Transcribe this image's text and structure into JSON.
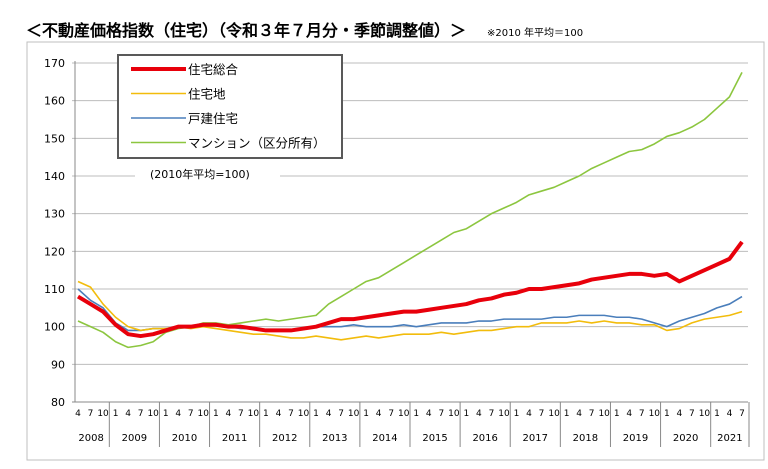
{
  "header": {
    "title": "＜不動産価格指数（住宅）（令和３年７月分・季節調整値）＞",
    "note": "※2010 年平均＝100"
  },
  "chart_data": {
    "type": "line",
    "title": "＜不動産価格指数（住宅）（令和３年７月分・季節調整値）＞",
    "annotation": "(2010年平均=100)",
    "xlabel": "",
    "ylabel": "",
    "ylim": [
      80,
      170
    ],
    "yticks": [
      80,
      90,
      100,
      110,
      120,
      130,
      140,
      150,
      160,
      170
    ],
    "grid": true,
    "legend_position": "top-left",
    "month_tick_labels": [
      "1",
      "4",
      "7",
      "10"
    ],
    "year_labels": [
      "2008",
      "2009",
      "2010",
      "2011",
      "2012",
      "2013",
      "2014",
      "2015",
      "2016",
      "2017",
      "2018",
      "2019",
      "2020",
      "2021"
    ],
    "x": [
      "2008-04",
      "2008-07",
      "2008-10",
      "2009-01",
      "2009-04",
      "2009-07",
      "2009-10",
      "2010-01",
      "2010-04",
      "2010-07",
      "2010-10",
      "2011-01",
      "2011-04",
      "2011-07",
      "2011-10",
      "2012-01",
      "2012-04",
      "2012-07",
      "2012-10",
      "2013-01",
      "2013-04",
      "2013-07",
      "2013-10",
      "2014-01",
      "2014-04",
      "2014-07",
      "2014-10",
      "2015-01",
      "2015-04",
      "2015-07",
      "2015-10",
      "2016-01",
      "2016-04",
      "2016-07",
      "2016-10",
      "2017-01",
      "2017-04",
      "2017-07",
      "2017-10",
      "2018-01",
      "2018-04",
      "2018-07",
      "2018-10",
      "2019-01",
      "2019-04",
      "2019-07",
      "2019-10",
      "2020-01",
      "2020-04",
      "2020-07",
      "2020-10",
      "2021-01",
      "2021-04",
      "2021-07"
    ],
    "series": [
      {
        "name": "住宅総合",
        "color": "#e8000b",
        "width": 4,
        "values": [
          108,
          106,
          104,
          100.5,
          98,
          97.5,
          98,
          99,
          100,
          100,
          100.5,
          100.5,
          100,
          100,
          99.5,
          99,
          99,
          99,
          99.5,
          100,
          101,
          102,
          102,
          102.5,
          103,
          103.5,
          104,
          104,
          104.5,
          105,
          105.5,
          106,
          107,
          107.5,
          108.5,
          109,
          110,
          110,
          110.5,
          111,
          111.5,
          112.5,
          113,
          113.5,
          114,
          114,
          113.5,
          114,
          112,
          113.5,
          115,
          116.5,
          118,
          122.5
        ]
      },
      {
        "name": "住宅地",
        "color": "#f2bc0c",
        "width": 1.6,
        "values": [
          112,
          110.5,
          106,
          102.5,
          100,
          99,
          99.5,
          99.5,
          100,
          99.5,
          100,
          99.5,
          99,
          98.5,
          98,
          98,
          97.5,
          97,
          97,
          97.5,
          97,
          96.5,
          97,
          97.5,
          97,
          97.5,
          98,
          98,
          98,
          98.5,
          98,
          98.5,
          99,
          99,
          99.5,
          100,
          100,
          101,
          101,
          101,
          101.5,
          101,
          101.5,
          101,
          101,
          100.5,
          100.5,
          99,
          99.5,
          101,
          102,
          102.5,
          103,
          104
        ]
      },
      {
        "name": "戸建住宅",
        "color": "#4a7ebb",
        "width": 1.6,
        "values": [
          110,
          107,
          105,
          101,
          99,
          99,
          99.5,
          99.5,
          100,
          100,
          100.5,
          100.5,
          100,
          99.5,
          99.5,
          99,
          99,
          99,
          99.5,
          100,
          100,
          100,
          100.5,
          100,
          100,
          100,
          100.5,
          100,
          100.5,
          101,
          101,
          101,
          101.5,
          101.5,
          102,
          102,
          102,
          102,
          102.5,
          102.5,
          103,
          103,
          103,
          102.5,
          102.5,
          102,
          101,
          100,
          101.5,
          102.5,
          103.5,
          105,
          106,
          108
        ]
      },
      {
        "name": "マンション（区分所有）",
        "color": "#8cc63f",
        "width": 1.6,
        "values": [
          101.5,
          100,
          98.5,
          96,
          94.5,
          95,
          96,
          98.5,
          99.5,
          100,
          101,
          101,
          100.5,
          101,
          101.5,
          102,
          101.5,
          102,
          102.5,
          103,
          106,
          108,
          110,
          112,
          113,
          115,
          117,
          119,
          121,
          123,
          125,
          126,
          128,
          130,
          131.5,
          133,
          135,
          136,
          137,
          138.5,
          140,
          142,
          143.5,
          145,
          146.5,
          147,
          148.5,
          150.5,
          151.5,
          153,
          155,
          158,
          161,
          167.5
        ]
      }
    ]
  }
}
